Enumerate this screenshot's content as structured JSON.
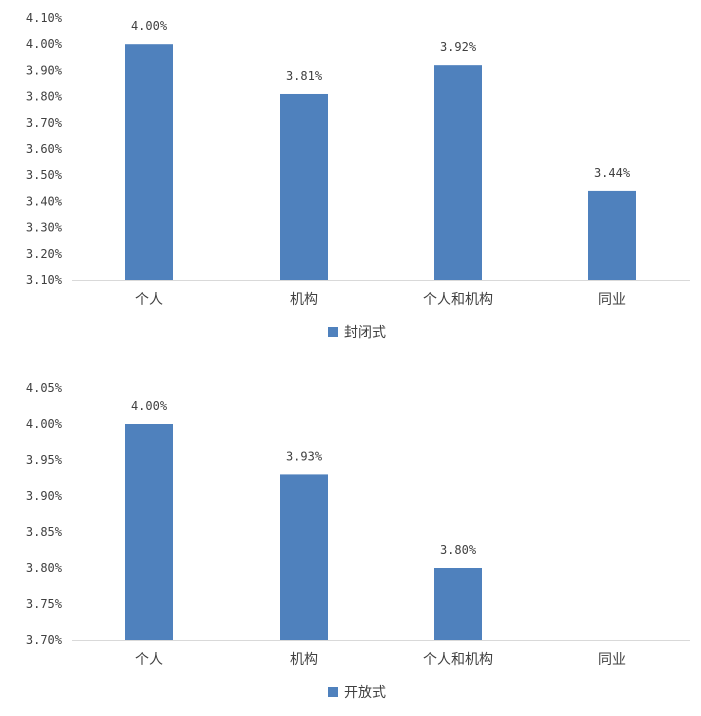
{
  "chart_data": [
    {
      "type": "bar",
      "categories": [
        "个人",
        "机构",
        "个人和机构",
        "同业"
      ],
      "series": [
        {
          "name": "封闭式",
          "values": [
            4.0,
            3.81,
            3.92,
            3.44
          ]
        }
      ],
      "data_labels": [
        "4.00%",
        "3.81%",
        "3.92%",
        "3.44%"
      ],
      "ylim": [
        3.1,
        4.1
      ],
      "yticks": [
        "3.10%",
        "3.20%",
        "3.30%",
        "3.40%",
        "3.50%",
        "3.60%",
        "3.70%",
        "3.80%",
        "3.90%",
        "4.00%",
        "4.10%"
      ],
      "grid": false,
      "legend": "bottom",
      "color": "#4f81bd"
    },
    {
      "type": "bar",
      "categories": [
        "个人",
        "机构",
        "个人和机构",
        "同业"
      ],
      "series": [
        {
          "name": "开放式",
          "values": [
            4.0,
            3.93,
            3.8,
            null
          ]
        }
      ],
      "data_labels": [
        "4.00%",
        "3.93%",
        "3.80%",
        ""
      ],
      "ylim": [
        3.7,
        4.05
      ],
      "yticks": [
        "3.70%",
        "3.75%",
        "3.80%",
        "3.85%",
        "3.90%",
        "3.95%",
        "4.00%",
        "4.05%"
      ],
      "grid": false,
      "legend": "bottom",
      "color": "#4f81bd"
    }
  ]
}
